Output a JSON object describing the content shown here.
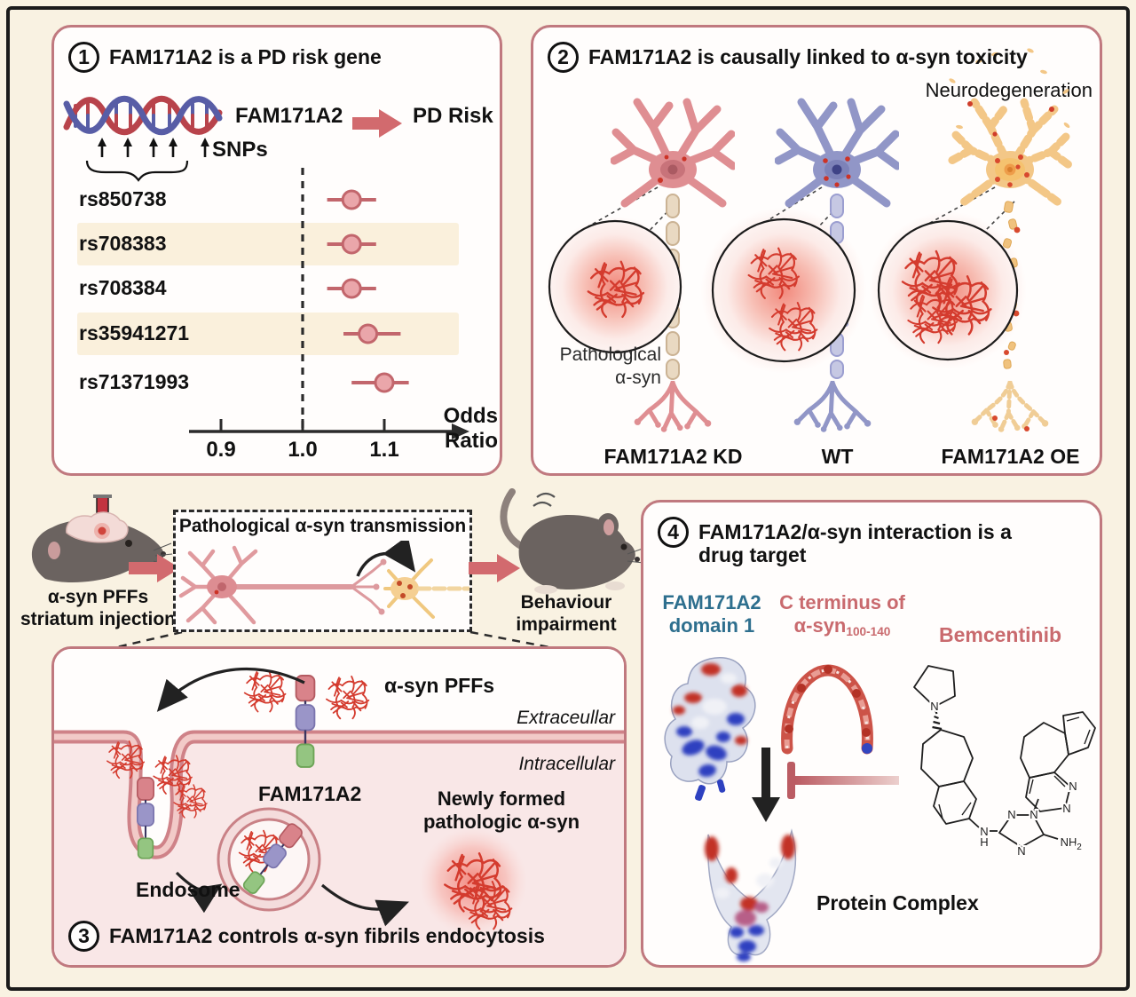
{
  "figure": {
    "type": "scientific-summary-figure",
    "topic": "FAM171A2 in Parkinson's disease"
  },
  "colors": {
    "background": "#f9f2e2",
    "frame_border": "#1b1b1b",
    "panel_border": "#c0797f",
    "accent_rose_arrow": "#d26a6e",
    "forest_point_fill": "#eaa6aa",
    "forest_point_stroke": "#c2666c",
    "row_highlight": "#faf0dc",
    "fibril_red": "#d43b2e",
    "teal_text": "#2e6f8e",
    "rose_text": "#c96a6e",
    "kd_neuron": "#df8e92",
    "wt_neuron": "#9196c7",
    "oe_neuron": "#f3c787"
  },
  "panel1": {
    "number": "1",
    "title": "FAM171A2 is a PD risk gene",
    "gene_label": "FAM171A2",
    "risk_label": "PD Risk",
    "snps_label": "SNPs",
    "axis_label": "Odds Ratio"
  },
  "chart_data": {
    "type": "scatter",
    "title": "SNP odds ratios for PD risk (forest plot)",
    "xlabel": "Odds Ratio",
    "x_ticks": [
      "0.9",
      "1.0",
      "1.1"
    ],
    "x_range": [
      0.82,
      1.18
    ],
    "reference_line": 1.0,
    "grid": false,
    "rows": [
      {
        "label": "rs850738",
        "or": 1.06,
        "ci_low": 1.03,
        "ci_high": 1.09,
        "highlight": false
      },
      {
        "label": "rs708383",
        "or": 1.06,
        "ci_low": 1.03,
        "ci_high": 1.09,
        "highlight": true
      },
      {
        "label": "rs708384",
        "or": 1.06,
        "ci_low": 1.03,
        "ci_high": 1.09,
        "highlight": false
      },
      {
        "label": "rs35941271",
        "or": 1.08,
        "ci_low": 1.05,
        "ci_high": 1.12,
        "highlight": true
      },
      {
        "label": "rs71371993",
        "or": 1.1,
        "ci_low": 1.06,
        "ci_high": 1.13,
        "highlight": false
      }
    ]
  },
  "panel2": {
    "number": "2",
    "title": "FAM171A2 is causally linked to α-syn toxicity",
    "neurodegeneration_label": "Neurodegeneration",
    "pathological_label_line1": "Pathological",
    "pathological_label_line2": "α-syn",
    "conditions": [
      {
        "label": "FAM171A2 KD"
      },
      {
        "label": "WT"
      },
      {
        "label": "FAM171A2 OE"
      }
    ]
  },
  "middle": {
    "injection_label_line1": "α-syn PFFs",
    "injection_label_line2": "striatum injection",
    "transmission_title": "Pathological α-syn transmission",
    "behaviour_label_line1": "Behaviour",
    "behaviour_label_line2": "impairment"
  },
  "panel3": {
    "number": "3",
    "title": "FAM171A2 controls α-syn fibrils endocytosis",
    "pffs_label": "α-syn PFFs",
    "extracellular_label": "Extraceullar",
    "intracellular_label": "Intracellular",
    "receptor_label": "FAM171A2",
    "endosome_label": "Endosome",
    "newly_formed_line1": "Newly formed",
    "newly_formed_line2": "pathologic α-syn"
  },
  "panel4": {
    "number": "4",
    "title_line1": "FAM171A2/α-syn interaction is a",
    "title_line2": "drug target",
    "domain_label_line1": "FAM171A2",
    "domain_label_line2": "domain 1",
    "cterm_line1": "C terminus of",
    "cterm_base": "α-syn",
    "cterm_sub": "100-140",
    "drug_label": "Bemcentinib",
    "complex_label": "Protein Complex"
  }
}
